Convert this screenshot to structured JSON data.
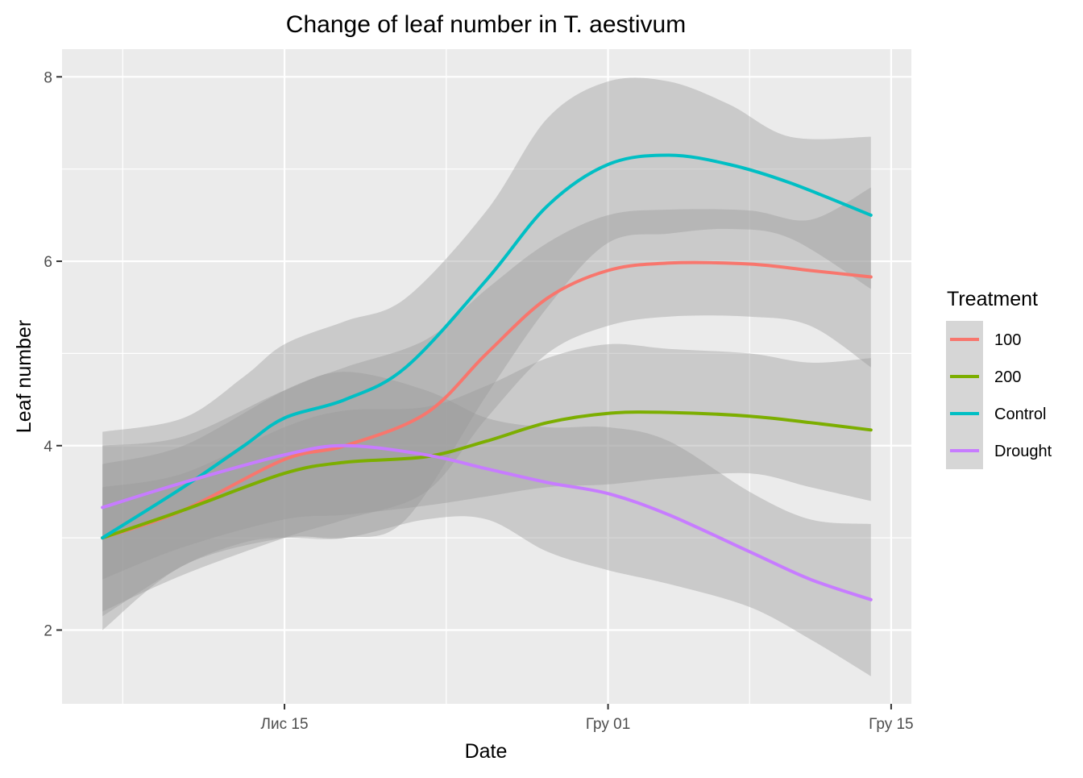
{
  "chart_data": {
    "type": "line",
    "title": "Change of leaf number in T. aestivum",
    "xlabel": "Date",
    "ylabel": "Leaf number",
    "x_axis": {
      "kind": "date",
      "range": [
        "2017-11-04",
        "2017-12-16"
      ],
      "ticks": [
        {
          "date": "2017-11-15",
          "label": "Лис 15"
        },
        {
          "date": "2017-12-01",
          "label": "Гру 01"
        },
        {
          "date": "2017-12-15",
          "label": "Гру 15"
        }
      ],
      "minor_ticks": [
        "2017-11-07",
        "2017-11-23",
        "2017-12-08"
      ]
    },
    "y_axis": {
      "range": [
        1.2,
        8.3
      ],
      "ticks": [
        2,
        4,
        6,
        8
      ],
      "minor_ticks": [
        3,
        5,
        7
      ]
    },
    "grid": true,
    "panel_background": "#ebebeb",
    "ribbon_color": "#999999",
    "ribbon_opacity": 0.4,
    "legend": {
      "title": "Treatment",
      "position": "right"
    },
    "series": [
      {
        "name": "100",
        "color": "#f8766d",
        "x": [
          "2017-11-06",
          "2017-11-10",
          "2017-11-15",
          "2017-11-18",
          "2017-11-22",
          "2017-11-25",
          "2017-11-28",
          "2017-12-01",
          "2017-12-04",
          "2017-12-08",
          "2017-12-11",
          "2017-12-14"
        ],
        "y": [
          3.0,
          3.3,
          3.85,
          4.0,
          4.35,
          5.0,
          5.6,
          5.9,
          5.98,
          5.97,
          5.9,
          5.83
        ],
        "lower": [
          2.2,
          2.6,
          3.0,
          3.2,
          3.5,
          4.3,
          5.0,
          5.3,
          5.4,
          5.4,
          5.3,
          4.85
        ],
        "upper": [
          3.8,
          4.0,
          4.6,
          4.85,
          5.15,
          5.7,
          6.2,
          6.5,
          6.56,
          6.55,
          6.45,
          6.8
        ]
      },
      {
        "name": "200",
        "color": "#7cae00",
        "x": [
          "2017-11-06",
          "2017-11-10",
          "2017-11-15",
          "2017-11-18",
          "2017-11-22",
          "2017-11-25",
          "2017-11-28",
          "2017-12-01",
          "2017-12-04",
          "2017-12-08",
          "2017-12-11",
          "2017-12-14"
        ],
        "y": [
          3.0,
          3.3,
          3.7,
          3.82,
          3.88,
          4.05,
          4.25,
          4.35,
          4.36,
          4.32,
          4.25,
          4.17
        ],
        "lower": [
          2.55,
          2.9,
          3.2,
          3.25,
          3.35,
          3.45,
          3.55,
          3.58,
          3.65,
          3.7,
          3.55,
          3.4
        ],
        "upper": [
          3.55,
          3.7,
          4.2,
          4.38,
          4.42,
          4.65,
          4.95,
          5.1,
          5.05,
          5.0,
          4.9,
          4.95
        ]
      },
      {
        "name": "Control",
        "color": "#00bfc4",
        "x": [
          "2017-11-06",
          "2017-11-10",
          "2017-11-13",
          "2017-11-15",
          "2017-11-18",
          "2017-11-21",
          "2017-11-25",
          "2017-11-28",
          "2017-12-01",
          "2017-12-04",
          "2017-12-07",
          "2017-12-10",
          "2017-12-14"
        ],
        "y": [
          3.0,
          3.55,
          4.0,
          4.3,
          4.5,
          4.85,
          5.8,
          6.6,
          7.05,
          7.15,
          7.05,
          6.85,
          6.5
        ],
        "lower": [
          2.15,
          2.7,
          2.95,
          3.0,
          3.0,
          3.2,
          4.55,
          5.5,
          6.2,
          6.3,
          6.35,
          6.25,
          5.7
        ],
        "upper": [
          4.15,
          4.3,
          4.75,
          5.1,
          5.35,
          5.6,
          6.55,
          7.55,
          7.95,
          7.95,
          7.7,
          7.35,
          7.35
        ]
      },
      {
        "name": "Drought",
        "color": "#c77cff",
        "x": [
          "2017-11-06",
          "2017-11-10",
          "2017-11-15",
          "2017-11-18",
          "2017-11-22",
          "2017-11-25",
          "2017-11-28",
          "2017-12-01",
          "2017-12-04",
          "2017-12-08",
          "2017-12-11",
          "2017-12-14"
        ],
        "y": [
          3.33,
          3.6,
          3.9,
          4.0,
          3.9,
          3.75,
          3.6,
          3.48,
          3.25,
          2.85,
          2.55,
          2.33
        ],
        "lower": [
          2.0,
          2.7,
          3.0,
          3.0,
          3.2,
          3.2,
          2.85,
          2.65,
          2.5,
          2.25,
          1.9,
          1.5
        ],
        "upper": [
          4.0,
          4.1,
          4.6,
          4.8,
          4.6,
          4.3,
          4.2,
          4.2,
          4.05,
          3.5,
          3.2,
          3.15
        ]
      }
    ]
  }
}
